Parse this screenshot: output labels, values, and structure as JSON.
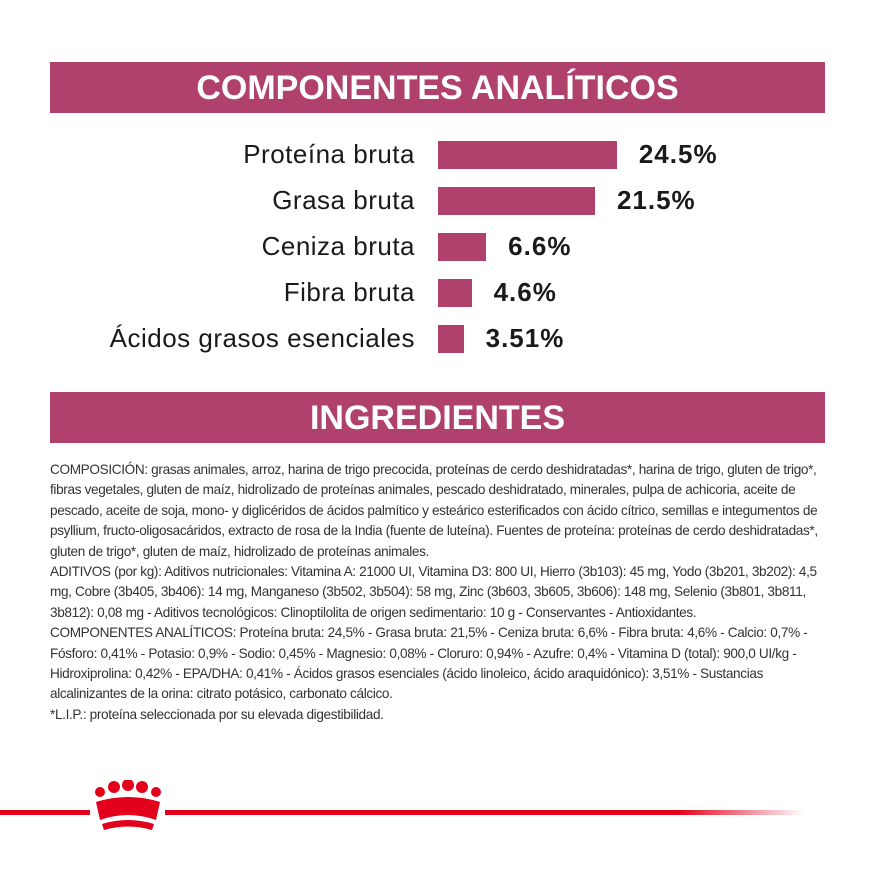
{
  "chart_data": {
    "type": "hbar",
    "title": "COMPONENTES ANALÍTICOS",
    "categories": [
      "Proteína bruta",
      "Grasa bruta",
      "Ceniza bruta",
      "Fibra bruta",
      "Ácidos grasos esenciales"
    ],
    "values": [
      24.5,
      21.5,
      6.6,
      4.6,
      3.51
    ],
    "value_labels": [
      "24.5%",
      "21.5%",
      "6.6%",
      "4.6%",
      "3.51%"
    ],
    "color": "#b0416d"
  },
  "ingredients": {
    "title": "INGREDIENTES",
    "paragraphs": [
      "COMPOSICIÓN: grasas animales, arroz, harina de trigo precocida, proteínas de cerdo deshidratadas*, harina de trigo, gluten de trigo*, fibras vegetales, gluten de maíz, hidrolizado de proteínas animales, pescado deshidratado, minerales, pulpa de achicoria, aceite de pescado, aceite de soja, mono- y diglicéridos de ácidos palmítico y esteárico esterificados con ácido cítrico, semillas e integumentos de psyllium, fructo-oligosacáridos, extracto de rosa de la India (fuente de luteína). Fuentes de proteína: proteínas de cerdo deshidratadas*, gluten de trigo*, gluten de maíz, hidrolizado de proteínas animales.",
      "ADITIVOS (por kg): Aditivos nutricionales: Vitamina A: 21000 UI, Vitamina D3: 800 UI, Hierro (3b103): 45 mg, Yodo (3b201, 3b202): 4,5 mg, Cobre (3b405, 3b406): 14 mg, Manganeso (3b502, 3b504): 58 mg, Zinc (3b603, 3b605, 3b606): 148 mg, Selenio (3b801, 3b811, 3b812): 0,08 mg - Aditivos tecnológicos: Clinoptilolita de origen sedimentario: 10 g - Conservantes - Antioxidantes.",
      "COMPONENTES ANALÍTICOS: Proteína bruta: 24,5% - Grasa bruta: 21,5% - Ceniza bruta: 6,6% - Fibra bruta: 4,6% - Calcio: 0,7% - Fósforo: 0,41% - Potasio: 0,9% - Sodio: 0,45% - Magnesio: 0,08% - Cloruro: 0,94% - Azufre: 0,4% - Vitamina D (total): 900,0 UI/kg - Hidroxiprolina: 0,42% - EPA/DHA: 0,41% - Ácidos grasos esenciales (ácido linoleico, ácido araquidónico): 3,51% - Sustancias alcalinizantes de la orina: citrato potásico, carbonato cálcico.",
      "*L.I.P.: proteína seleccionada por su elevada digestibilidad."
    ]
  }
}
